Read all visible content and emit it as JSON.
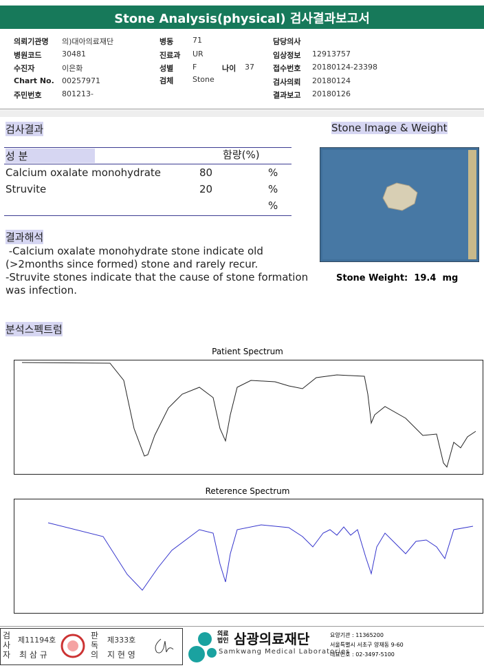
{
  "header": {
    "title": "Stone Analysis(physical) 검사결과보고서"
  },
  "info": {
    "col1": [
      [
        "의뢰기관명",
        "의)대아의료재단"
      ],
      [
        "병원코드",
        "30481"
      ],
      [
        "수진자",
        "이은화"
      ],
      [
        "Chart No.",
        "00257971"
      ],
      [
        "주민번호",
        "801213-"
      ]
    ],
    "col2": [
      [
        "병동",
        "71"
      ],
      [
        "진료과",
        "UR"
      ],
      [
        "성별",
        "F"
      ],
      [
        "검체",
        "Stone"
      ]
    ],
    "age": [
      "나이",
      "37"
    ],
    "col3": [
      [
        "담당의사"
      ],
      [
        "임상정보",
        "12913757"
      ],
      [
        "접수번호",
        "20180124-23398"
      ],
      [
        "검사의뢰",
        "20180124"
      ],
      [
        "결과보고",
        "20180126"
      ]
    ]
  },
  "results": {
    "title": "검사결과",
    "headers": [
      "성 분",
      "함량(%)"
    ],
    "rows": [
      [
        "Calcium oxalate monohydrate",
        "80",
        "%"
      ],
      [
        "Struvite",
        "20",
        "%"
      ],
      [
        "%"
      ]
    ]
  },
  "stone": {
    "title": "Stone Image & Weight",
    "weight_label": "Stone Weight:",
    "weight": "19.4",
    "unit": "mg"
  },
  "interpretation": {
    "title": "결과해석",
    "lines": [
      " -Calcium oxalate monohydrate stone indicate old",
      "(>2months since formed) stone and rarely recur.",
      "-Struvite stones indicate that the cause of stone formation",
      "was infection."
    ]
  },
  "spectrum": {
    "title": "분석스펙트럼",
    "patient": "Patient Spectrum",
    "reference": "Reterence Spectrum"
  },
  "footer": {
    "tester_role": "검사자",
    "tester_no": "제11194호",
    "tester_name": "최 삼 규",
    "reader_role": "판독의",
    "reader_no": "제333호",
    "reader_name": "지 현 영",
    "org_type": "의료법인",
    "org_name": "삼광의료재단",
    "org_en": "Samkwang Medical Laboratories",
    "code": "요양기관 : 11365200",
    "address": "서울특별시 서초구 양재동 9-60",
    "phone": "대표번호 : 02-3497-5100"
  }
}
